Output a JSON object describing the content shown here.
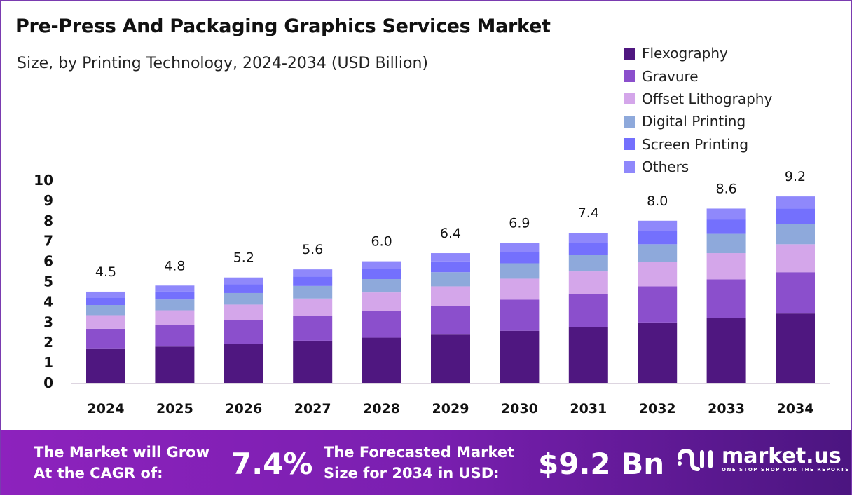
{
  "chart_data": {
    "type": "bar",
    "stacked": true,
    "title": "Pre-Press And Packaging Graphics Services Market",
    "subtitle": "Size, by Printing Technology, 2024-2034 (USD Billion)",
    "categories": [
      "2024",
      "2025",
      "2026",
      "2027",
      "2028",
      "2029",
      "2030",
      "2031",
      "2032",
      "2033",
      "2034"
    ],
    "totals": [
      "4.5",
      "4.8",
      "5.2",
      "5.6",
      "6.0",
      "6.4",
      "6.9",
      "7.4",
      "8.0",
      "8.6",
      "9.2"
    ],
    "series": [
      {
        "name": "Flexography",
        "color": "#4f1780",
        "values": [
          1.67,
          1.79,
          1.93,
          2.08,
          2.23,
          2.38,
          2.57,
          2.75,
          2.98,
          3.2,
          3.42
        ]
      },
      {
        "name": "Gravure",
        "color": "#8b4fcc",
        "values": [
          1.0,
          1.07,
          1.15,
          1.24,
          1.33,
          1.42,
          1.53,
          1.64,
          1.78,
          1.91,
          2.04
        ]
      },
      {
        "name": "Offset Lithography",
        "color": "#d4a6ea",
        "values": [
          0.67,
          0.72,
          0.78,
          0.84,
          0.9,
          0.96,
          1.04,
          1.11,
          1.2,
          1.29,
          1.38
        ]
      },
      {
        "name": "Digital Printing",
        "color": "#8ea9db",
        "values": [
          0.5,
          0.53,
          0.57,
          0.62,
          0.66,
          0.7,
          0.76,
          0.81,
          0.88,
          0.95,
          1.01
        ]
      },
      {
        "name": "Screen Printing",
        "color": "#7470fd",
        "values": [
          0.37,
          0.4,
          0.43,
          0.46,
          0.5,
          0.53,
          0.57,
          0.61,
          0.66,
          0.71,
          0.76
        ]
      },
      {
        "name": "Others",
        "color": "#8f88fb",
        "values": [
          0.29,
          0.29,
          0.34,
          0.36,
          0.38,
          0.41,
          0.43,
          0.48,
          0.5,
          0.54,
          0.59
        ]
      }
    ],
    "yticks": [
      "0",
      "1",
      "2",
      "3",
      "4",
      "5",
      "6",
      "7",
      "8",
      "9",
      "10"
    ],
    "ylim": [
      0,
      10
    ],
    "grid": false,
    "legend": "top-right"
  },
  "footer": {
    "cagr_label_1": "The Market will Grow",
    "cagr_label_2": "At the CAGR of:",
    "cagr_value": "7.4%",
    "forecast_label_1": "The Forecasted Market",
    "forecast_label_2": "Size for 2034 in USD:",
    "forecast_value": "$9.2 Bn",
    "logo_name": "market.us",
    "logo_tagline": "ONE STOP SHOP FOR THE REPORTS"
  }
}
